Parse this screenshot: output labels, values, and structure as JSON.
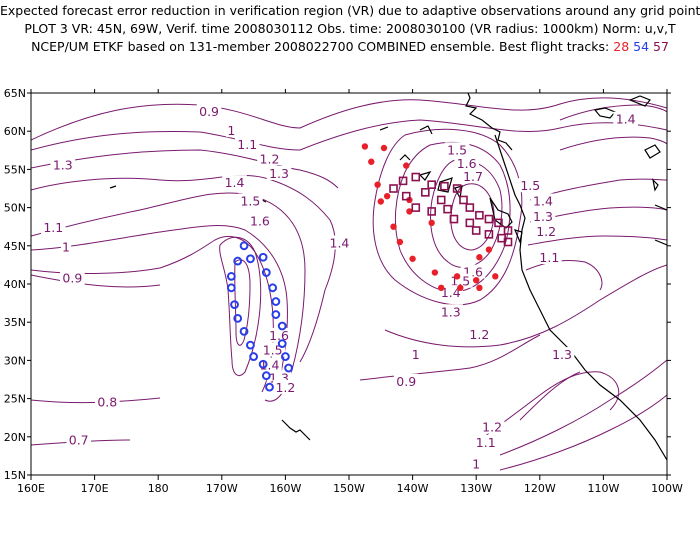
{
  "header": {
    "line1": "Expected forecast error reduction in verification region (VR) due to adaptive observations around any grid point.",
    "line2": "PLOT 3 VR: 45N, 69W, Verif. time 2008030112 Obs. time: 2008030100 (VR radius: 1000km) Norm: u,v,T",
    "line3_prefix": "NCEP/UM ETKF based on 131-member 2008022700 COMBINED ensemble.  Best flight tracks:",
    "track_a": "28",
    "track_b": "54",
    "track_c": "57"
  },
  "colors": {
    "contour": "#7a1a6e",
    "coast": "#000000",
    "track_a": "#e8202a",
    "track_b": "#2a3ee8",
    "track_c": "#8a1050"
  },
  "map": {
    "lon_labels": [
      "160E",
      "170E",
      "180",
      "170W",
      "160W",
      "150W",
      "140W",
      "130W",
      "120W",
      "110W",
      "100W"
    ],
    "lat_labels": [
      "15N",
      "20N",
      "25N",
      "30N",
      "35N",
      "40N",
      "45N",
      "50N",
      "55N",
      "60N",
      "65N"
    ]
  },
  "contour_labels": [
    {
      "text": "0.9",
      "lon": -172.0,
      "lat": 62.5
    },
    {
      "text": "1",
      "lon": -168.5,
      "lat": 60.0
    },
    {
      "text": "1.1",
      "lon": -166.0,
      "lat": 58.2
    },
    {
      "text": "1.2",
      "lon": -162.5,
      "lat": 56.3
    },
    {
      "text": "1.3",
      "lon": -161.0,
      "lat": 54.4
    },
    {
      "text": "1.3",
      "lon": 165.0,
      "lat": 55.5
    },
    {
      "text": "1.4",
      "lon": -168.0,
      "lat": 53.2
    },
    {
      "text": "1.5",
      "lon": -165.5,
      "lat": 50.8
    },
    {
      "text": "1.6",
      "lon": -164.0,
      "lat": 48.2
    },
    {
      "text": "1.1",
      "lon": 163.5,
      "lat": 47.3
    },
    {
      "text": "1",
      "lon": 165.5,
      "lat": 44.8
    },
    {
      "text": "0.9",
      "lon": 166.5,
      "lat": 40.7
    },
    {
      "text": "1.4",
      "lon": -151.5,
      "lat": 45.3
    },
    {
      "text": "1.6",
      "lon": -161.0,
      "lat": 33.2
    },
    {
      "text": "1.5",
      "lon": -162.0,
      "lat": 31.3
    },
    {
      "text": "1.4",
      "lon": -162.5,
      "lat": 29.3
    },
    {
      "text": "1.3",
      "lon": -161.0,
      "lat": 27.6
    },
    {
      "text": "1.2",
      "lon": -160.0,
      "lat": 26.4
    },
    {
      "text": "0.8",
      "lon": 172.0,
      "lat": 24.5
    },
    {
      "text": "0.7",
      "lon": 167.5,
      "lat": 19.5
    },
    {
      "text": "1.5",
      "lon": -133.0,
      "lat": 57.5
    },
    {
      "text": "1.6",
      "lon": -131.5,
      "lat": 55.7
    },
    {
      "text": "1.7",
      "lon": -130.5,
      "lat": 54.0
    },
    {
      "text": "1.6",
      "lon": -130.5,
      "lat": 41.5
    },
    {
      "text": "1.5",
      "lon": -132.5,
      "lat": 40.3
    },
    {
      "text": "1.4",
      "lon": -134.0,
      "lat": 38.8
    },
    {
      "text": "1.3",
      "lon": -134.0,
      "lat": 36.3
    },
    {
      "text": "1.2",
      "lon": -129.5,
      "lat": 33.3
    },
    {
      "text": "1",
      "lon": -139.5,
      "lat": 30.7
    },
    {
      "text": "0.9",
      "lon": -141.0,
      "lat": 27.2
    },
    {
      "text": "1.5",
      "lon": -121.5,
      "lat": 52.8
    },
    {
      "text": "1.4",
      "lon": -119.5,
      "lat": 50.8
    },
    {
      "text": "1.3",
      "lon": -119.5,
      "lat": 48.8
    },
    {
      "text": "1.2",
      "lon": -119.0,
      "lat": 46.8
    },
    {
      "text": "1.1",
      "lon": -118.5,
      "lat": 43.4
    },
    {
      "text": "1.4",
      "lon": -106.5,
      "lat": 61.5
    },
    {
      "text": "1.3",
      "lon": -116.5,
      "lat": 30.7
    },
    {
      "text": "1.2",
      "lon": -127.5,
      "lat": 21.2
    },
    {
      "text": "1.1",
      "lon": -128.5,
      "lat": 19.2
    },
    {
      "text": "1",
      "lon": -130.0,
      "lat": 16.4
    }
  ],
  "tracks": {
    "track_b": [
      [
        -166.5,
        45.0
      ],
      [
        -165.5,
        43.3
      ],
      [
        -167.5,
        43.0
      ],
      [
        -168.5,
        41.0
      ],
      [
        -168.5,
        39.5
      ],
      [
        -168.0,
        37.3
      ],
      [
        -167.5,
        35.5
      ],
      [
        -166.5,
        33.8
      ],
      [
        -165.5,
        32.0
      ],
      [
        -165.0,
        30.5
      ],
      [
        -163.5,
        29.5
      ],
      [
        -163.0,
        28.0
      ],
      [
        -162.5,
        26.5
      ],
      [
        -163.5,
        43.5
      ],
      [
        -163.0,
        41.5
      ],
      [
        -162.0,
        39.5
      ],
      [
        -161.5,
        37.7
      ],
      [
        -161.5,
        36.0
      ],
      [
        -160.5,
        34.5
      ],
      [
        -160.5,
        32.2
      ],
      [
        -160.0,
        30.5
      ],
      [
        -159.5,
        29.0
      ]
    ],
    "track_a": [
      [
        -147.5,
        58.0
      ],
      [
        -144.5,
        57.8
      ],
      [
        -146.5,
        56.0
      ],
      [
        -141.0,
        55.5
      ],
      [
        -145.5,
        53.0
      ],
      [
        -144.0,
        51.5
      ],
      [
        -145.0,
        50.8
      ],
      [
        -140.5,
        49.5
      ],
      [
        -143.0,
        47.5
      ],
      [
        -142.0,
        45.5
      ],
      [
        -140.0,
        43.3
      ],
      [
        -136.5,
        41.5
      ],
      [
        -133.0,
        41.0
      ],
      [
        -130.0,
        40.5
      ],
      [
        -127.0,
        41.0
      ],
      [
        -135.5,
        39.5
      ],
      [
        -132.5,
        39.5
      ],
      [
        -129.5,
        39.5
      ],
      [
        -128.0,
        44.5
      ],
      [
        -129.5,
        43.5
      ],
      [
        -140.5,
        51.0
      ],
      [
        -137.0,
        48.0
      ]
    ],
    "track_c": [
      [
        -139.5,
        54.0
      ],
      [
        -141.5,
        53.5
      ],
      [
        -137.0,
        53.0
      ],
      [
        -135.0,
        52.8
      ],
      [
        -143.0,
        52.5
      ],
      [
        -138.0,
        52.0
      ],
      [
        -133.0,
        52.5
      ],
      [
        -141.0,
        51.5
      ],
      [
        -135.5,
        51.0
      ],
      [
        -132.0,
        51.0
      ],
      [
        -139.5,
        50.0
      ],
      [
        -137.0,
        49.5
      ],
      [
        -134.5,
        49.8
      ],
      [
        -131.0,
        50.0
      ],
      [
        -129.5,
        49.0
      ],
      [
        -133.5,
        48.5
      ],
      [
        -131.0,
        48.0
      ],
      [
        -128.0,
        48.5
      ],
      [
        -126.5,
        48.0
      ],
      [
        -130.0,
        47.0
      ],
      [
        -128.0,
        46.5
      ],
      [
        -125.0,
        47.0
      ],
      [
        -126.0,
        46.0
      ],
      [
        -125.0,
        45.5
      ]
    ]
  }
}
